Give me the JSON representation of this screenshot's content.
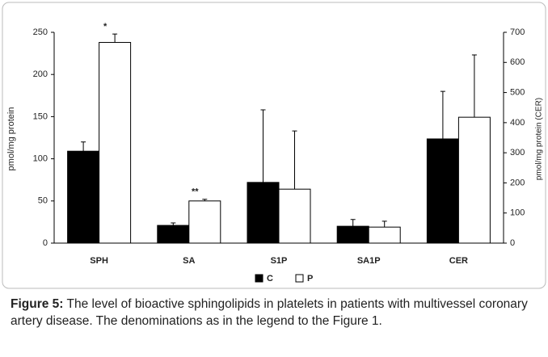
{
  "chart_data": {
    "type": "bar",
    "categories": [
      "SPH",
      "SA",
      "S1P",
      "SA1P",
      "CER"
    ],
    "ylabel": "pmol/mg protein",
    "y2label": "pmol/mg protein  (CER)",
    "ylim": [
      0,
      250
    ],
    "yticks": [
      0,
      50,
      100,
      150,
      200,
      250
    ],
    "y2lim": [
      0,
      700
    ],
    "y2ticks": [
      0,
      100,
      200,
      300,
      400,
      500,
      600,
      700
    ],
    "series": [
      {
        "name": "C",
        "color": "#000000",
        "values": [
          109,
          21,
          72,
          20,
          null
        ],
        "errors": [
          11,
          3,
          86,
          8,
          null
        ]
      },
      {
        "name": "P",
        "color": "#ffffff",
        "values": [
          238,
          50,
          64,
          19,
          null
        ],
        "errors": [
          10,
          2,
          69,
          7,
          null
        ],
        "value_annotations": [
          "*",
          "**",
          null,
          null,
          null
        ]
      },
      {
        "color": "#000000",
        "axis": "y2",
        "values": [
          null,
          null,
          null,
          null,
          346
        ],
        "errors": [
          null,
          null,
          null,
          null,
          158
        ]
      },
      {
        "color": "#ffffff",
        "axis": "y2",
        "values": [
          null,
          null,
          null,
          null,
          418
        ],
        "errors": [
          null,
          null,
          null,
          null,
          207
        ]
      }
    ]
  },
  "caption": {
    "label": "Figure 5:",
    "text": "The level of bioactive sphingolipids in platelets in patients with multivessel coronary artery disease. The denominations as in the legend to the Figure 1."
  }
}
